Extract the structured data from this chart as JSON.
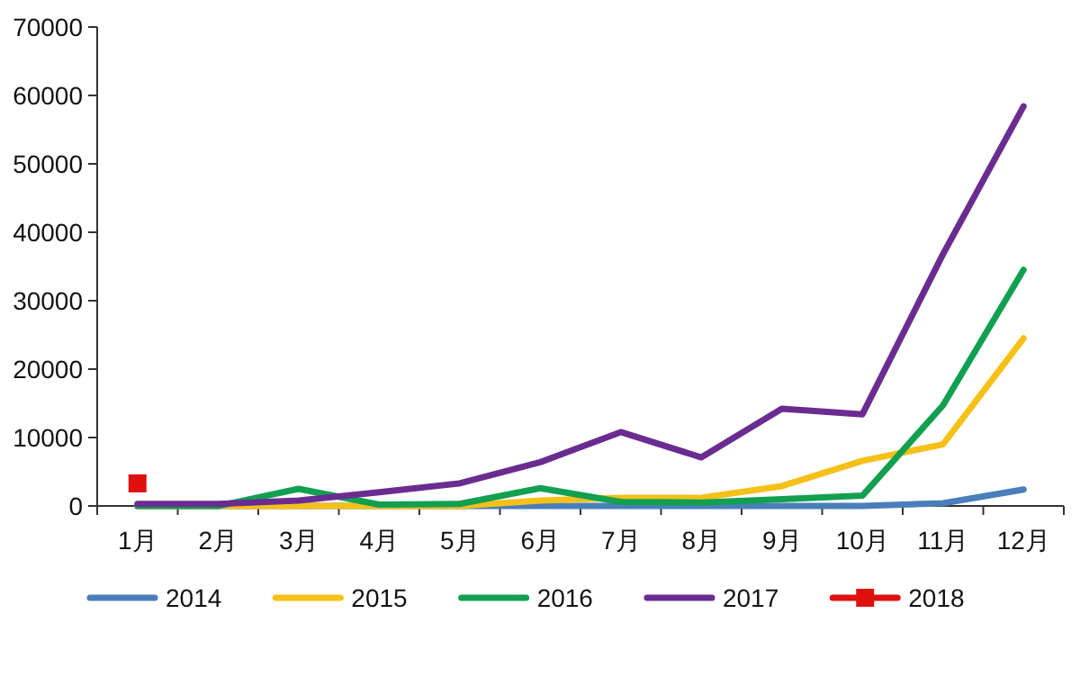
{
  "chart_data": {
    "type": "line",
    "categories": [
      "1月",
      "2月",
      "3月",
      "4月",
      "5月",
      "6月",
      "7月",
      "8月",
      "9月",
      "10月",
      "11月",
      "12月"
    ],
    "ylim": [
      0,
      70000
    ],
    "yticks": [
      0,
      10000,
      20000,
      30000,
      40000,
      50000,
      60000,
      70000
    ],
    "grid": false,
    "legend": "bottom",
    "marker": "none",
    "line_style": "solid",
    "series": [
      {
        "name": "2014",
        "color": "#4a7ebb",
        "values": [
          0,
          0,
          0,
          0,
          0,
          0,
          0,
          0,
          0,
          0,
          400,
          2400
        ]
      },
      {
        "name": "2015",
        "color": "#f5c018",
        "values": [
          0,
          0,
          0,
          0,
          0,
          800,
          1200,
          1200,
          2900,
          6600,
          9000,
          24500
        ]
      },
      {
        "name": "2016",
        "color": "#12a050",
        "values": [
          0,
          0,
          2500,
          200,
          300,
          2600,
          600,
          500,
          1000,
          1500,
          14700,
          34500
        ]
      },
      {
        "name": "2017",
        "color": "#6a2c91",
        "values": [
          300,
          300,
          800,
          2000,
          3300,
          6400,
          10800,
          7100,
          14200,
          13400,
          36800,
          58400
        ]
      },
      {
        "name": "2018",
        "color": "#e01010",
        "marker": "square",
        "values": [
          3300,
          null,
          null,
          null,
          null,
          null,
          null,
          null,
          null,
          null,
          null,
          null
        ]
      }
    ]
  }
}
